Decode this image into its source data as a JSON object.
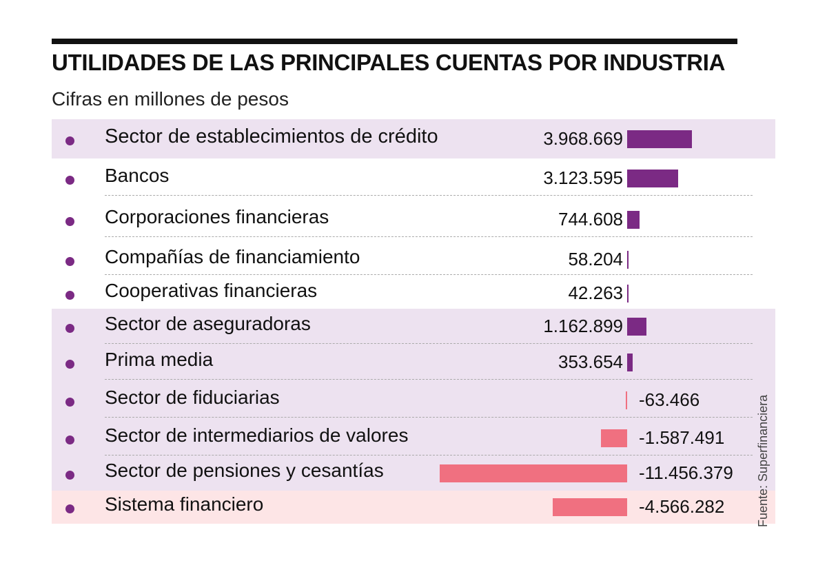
{
  "chart_data": {
    "type": "bar",
    "title": "UTILIDADES DE LAS PRINCIPALES CUENTAS POR INDUSTRIA",
    "subtitle": "Cifras en millones de pesos",
    "source": "Fuente: Superfinanciera",
    "categories": [
      "Sector de establecimientos de crédito",
      "Bancos",
      "Corporaciones financieras",
      "Compañías de financiamiento",
      "Cooperativas financieras",
      "Sector de aseguradoras",
      "Prima media",
      "Sector de fiduciarias",
      "Sector de intermediarios de valores",
      "Sector de pensiones y cesantías",
      "Sistema financiero"
    ],
    "values": [
      3968669,
      3123595,
      744608,
      58204,
      42263,
      1162899,
      353654,
      -63466,
      -1587491,
      -11456379,
      -4566282
    ],
    "value_labels": [
      "3.968.669",
      "3.123.595",
      "744.608",
      "58.204",
      "42.263",
      "1.162.899",
      "353.654",
      "-63.466",
      "-1.587.491",
      "-11.456.379",
      "-4.566.282"
    ],
    "colors": {
      "positive": "#7b2a84",
      "negative": "#f07080",
      "band_purple": "#ede2f0",
      "band_pink": "#fde5e6",
      "dot": "#7b2a84"
    },
    "xlabel": "",
    "ylabel": "",
    "grid": false,
    "legend": "none"
  }
}
